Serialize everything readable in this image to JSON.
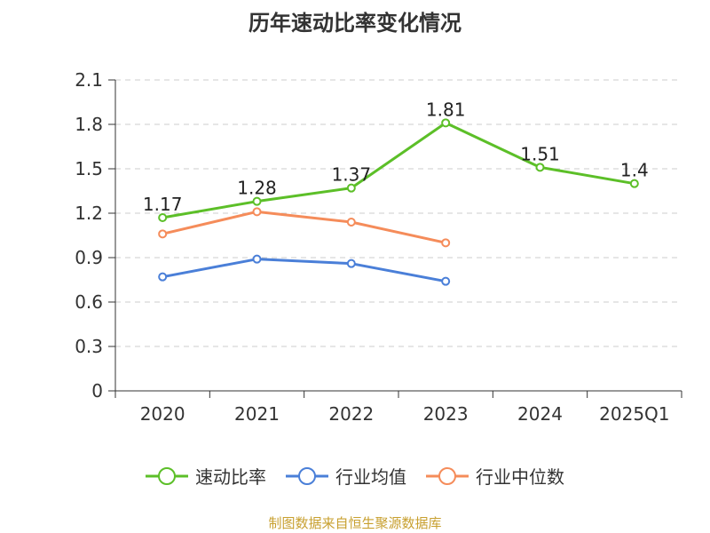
{
  "title": "历年速动比率变化情况",
  "footer": "制图数据来自恒生聚源数据库",
  "chart_data": {
    "type": "line",
    "categories": [
      "2020",
      "2021",
      "2022",
      "2023",
      "2024",
      "2025Q1"
    ],
    "ylim": [
      0,
      2.1
    ],
    "yticks": [
      "0",
      "0.3",
      "0.6",
      "0.9",
      "1.2",
      "1.5",
      "1.8",
      "2.1"
    ],
    "grid": true,
    "legend_position": "bottom",
    "series": [
      {
        "name": "速动比率",
        "color": "#5cbf28",
        "values": [
          1.17,
          1.28,
          1.37,
          1.81,
          1.51,
          1.4
        ],
        "labels": [
          "1.17",
          "1.28",
          "1.37",
          "1.81",
          "1.51",
          "1.4"
        ]
      },
      {
        "name": "行业均值",
        "color": "#4a7fd8",
        "values": [
          0.77,
          0.89,
          0.86,
          0.74,
          null,
          null
        ]
      },
      {
        "name": "行业中位数",
        "color": "#f58c5a",
        "values": [
          1.06,
          1.21,
          1.14,
          1.0,
          null,
          null
        ]
      }
    ]
  }
}
